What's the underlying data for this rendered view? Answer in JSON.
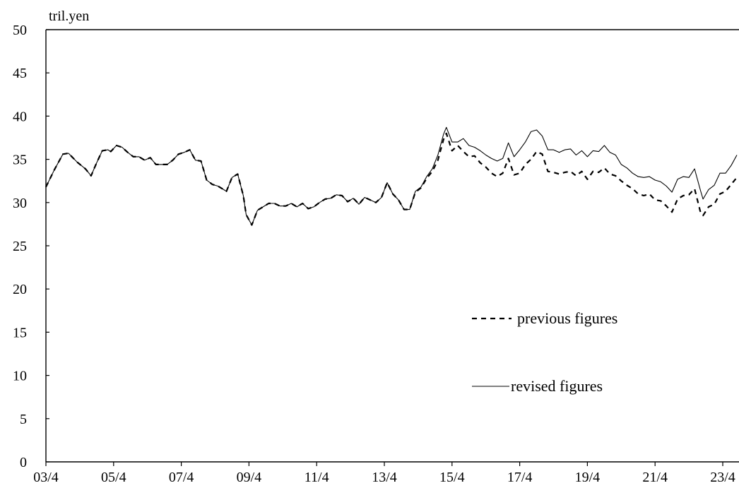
{
  "chart_data": {
    "type": "line",
    "title": "",
    "ylabel": "tril.yen",
    "xlabel": "",
    "ylim": [
      0,
      50
    ],
    "yticks": [
      "0",
      "5",
      "10",
      "15",
      "20",
      "25",
      "30",
      "35",
      "40",
      "45",
      "50"
    ],
    "x_tick_labels": [
      "03/4",
      "05/4",
      "07/4",
      "09/4",
      "11/4",
      "13/4",
      "15/4",
      "17/4",
      "19/4",
      "21/4",
      "23/4"
    ],
    "x_domain": [
      "2003-04",
      "2023-10"
    ],
    "grid": false,
    "legend_position": "right-middle",
    "series": [
      {
        "name": "previous figures",
        "style": "dashed",
        "color": "#000000",
        "points": [
          [
            "2003-04",
            31.8
          ],
          [
            "2003-07",
            33.8
          ],
          [
            "2003-10",
            35.6
          ],
          [
            "2003-12",
            35.7
          ],
          [
            "2004-03",
            34.7
          ],
          [
            "2004-06",
            33.9
          ],
          [
            "2004-08",
            33.1
          ],
          [
            "2004-10",
            34.6
          ],
          [
            "2004-12",
            36.0
          ],
          [
            "2005-02",
            36.1
          ],
          [
            "2005-03",
            35.9
          ],
          [
            "2005-05",
            36.6
          ],
          [
            "2005-07",
            36.4
          ],
          [
            "2005-09",
            35.8
          ],
          [
            "2005-11",
            35.3
          ],
          [
            "2006-01",
            35.3
          ],
          [
            "2006-03",
            34.9
          ],
          [
            "2006-05",
            35.2
          ],
          [
            "2006-07",
            34.4
          ],
          [
            "2006-09",
            34.4
          ],
          [
            "2006-11",
            34.4
          ],
          [
            "2007-01",
            34.9
          ],
          [
            "2007-03",
            35.6
          ],
          [
            "2007-05",
            35.8
          ],
          [
            "2007-07",
            36.1
          ],
          [
            "2007-09",
            34.9
          ],
          [
            "2007-11",
            34.8
          ],
          [
            "2008-01",
            32.6
          ],
          [
            "2008-03",
            32.1
          ],
          [
            "2008-05",
            31.9
          ],
          [
            "2008-08",
            31.3
          ],
          [
            "2008-10",
            32.9
          ],
          [
            "2008-12",
            33.3
          ],
          [
            "2009-02",
            30.8
          ],
          [
            "2009-03",
            28.6
          ],
          [
            "2009-05",
            27.4
          ],
          [
            "2009-07",
            29.1
          ],
          [
            "2009-09",
            29.5
          ],
          [
            "2009-11",
            29.9
          ],
          [
            "2010-01",
            29.9
          ],
          [
            "2010-03",
            29.6
          ],
          [
            "2010-05",
            29.6
          ],
          [
            "2010-07",
            29.9
          ],
          [
            "2010-09",
            29.5
          ],
          [
            "2010-11",
            29.9
          ],
          [
            "2011-01",
            29.3
          ],
          [
            "2011-03",
            29.5
          ],
          [
            "2011-05",
            30.0
          ],
          [
            "2011-07",
            30.4
          ],
          [
            "2011-09",
            30.5
          ],
          [
            "2011-11",
            30.9
          ],
          [
            "2012-01",
            30.8
          ],
          [
            "2012-03",
            30.1
          ],
          [
            "2012-05",
            30.5
          ],
          [
            "2012-07",
            29.8
          ],
          [
            "2012-09",
            30.6
          ],
          [
            "2012-11",
            30.3
          ],
          [
            "2013-01",
            30.0
          ],
          [
            "2013-03",
            30.6
          ],
          [
            "2013-05",
            32.3
          ],
          [
            "2013-07",
            31.0
          ],
          [
            "2013-09",
            30.3
          ],
          [
            "2013-11",
            29.2
          ],
          [
            "2014-01",
            29.2
          ],
          [
            "2014-03",
            31.2
          ],
          [
            "2014-05",
            31.7
          ],
          [
            "2014-07",
            32.8
          ],
          [
            "2014-09",
            33.6
          ],
          [
            "2014-11",
            34.9
          ],
          [
            "2015-01",
            37.3
          ],
          [
            "2015-02",
            38.0
          ],
          [
            "2015-04",
            36.0
          ],
          [
            "2015-06",
            36.6
          ],
          [
            "2015-08",
            35.9
          ],
          [
            "2015-10",
            35.3
          ],
          [
            "2015-12",
            35.4
          ],
          [
            "2016-02",
            34.6
          ],
          [
            "2016-04",
            34.1
          ],
          [
            "2016-06",
            33.4
          ],
          [
            "2016-08",
            33.0
          ],
          [
            "2016-10",
            33.4
          ],
          [
            "2016-12",
            35.1
          ],
          [
            "2017-02",
            33.2
          ],
          [
            "2017-04",
            33.4
          ],
          [
            "2017-06",
            34.4
          ],
          [
            "2017-08",
            35.0
          ],
          [
            "2017-10",
            35.9
          ],
          [
            "2017-12",
            35.6
          ],
          [
            "2018-02",
            33.6
          ],
          [
            "2018-04",
            33.5
          ],
          [
            "2018-06",
            33.3
          ],
          [
            "2018-08",
            33.5
          ],
          [
            "2018-10",
            33.6
          ],
          [
            "2018-12",
            33.1
          ],
          [
            "2019-02",
            33.6
          ],
          [
            "2019-04",
            32.7
          ],
          [
            "2019-06",
            33.6
          ],
          [
            "2019-08",
            33.5
          ],
          [
            "2019-10",
            34.0
          ],
          [
            "2019-12",
            33.3
          ],
          [
            "2020-02",
            33.1
          ],
          [
            "2020-04",
            32.5
          ],
          [
            "2020-06",
            32.0
          ],
          [
            "2020-08",
            31.6
          ],
          [
            "2020-10",
            31.0
          ],
          [
            "2020-12",
            30.8
          ],
          [
            "2021-02",
            31.0
          ],
          [
            "2021-04",
            30.3
          ],
          [
            "2021-06",
            30.2
          ],
          [
            "2021-08",
            29.6
          ],
          [
            "2021-10",
            28.9
          ],
          [
            "2021-12",
            30.4
          ],
          [
            "2022-02",
            30.8
          ],
          [
            "2022-04",
            30.9
          ],
          [
            "2022-06",
            31.6
          ],
          [
            "2022-08",
            29.0
          ],
          [
            "2022-09",
            28.5
          ],
          [
            "2022-11",
            29.5
          ],
          [
            "2023-01",
            29.8
          ],
          [
            "2023-03",
            31.0
          ],
          [
            "2023-05",
            31.3
          ],
          [
            "2023-07",
            32.1
          ],
          [
            "2023-09",
            32.9
          ]
        ]
      },
      {
        "name": "revised figures",
        "style": "solid",
        "color": "#000000",
        "points": [
          [
            "2003-04",
            31.8
          ],
          [
            "2003-07",
            33.8
          ],
          [
            "2003-10",
            35.6
          ],
          [
            "2003-12",
            35.7
          ],
          [
            "2004-03",
            34.7
          ],
          [
            "2004-06",
            33.9
          ],
          [
            "2004-08",
            33.1
          ],
          [
            "2004-10",
            34.6
          ],
          [
            "2004-12",
            36.0
          ],
          [
            "2005-02",
            36.1
          ],
          [
            "2005-03",
            35.9
          ],
          [
            "2005-05",
            36.6
          ],
          [
            "2005-07",
            36.4
          ],
          [
            "2005-09",
            35.8
          ],
          [
            "2005-11",
            35.3
          ],
          [
            "2006-01",
            35.3
          ],
          [
            "2006-03",
            34.9
          ],
          [
            "2006-05",
            35.2
          ],
          [
            "2006-07",
            34.4
          ],
          [
            "2006-09",
            34.4
          ],
          [
            "2006-11",
            34.4
          ],
          [
            "2007-01",
            34.9
          ],
          [
            "2007-03",
            35.6
          ],
          [
            "2007-05",
            35.8
          ],
          [
            "2007-07",
            36.1
          ],
          [
            "2007-09",
            34.9
          ],
          [
            "2007-11",
            34.8
          ],
          [
            "2008-01",
            32.6
          ],
          [
            "2008-03",
            32.1
          ],
          [
            "2008-05",
            31.9
          ],
          [
            "2008-08",
            31.3
          ],
          [
            "2008-10",
            32.9
          ],
          [
            "2008-12",
            33.3
          ],
          [
            "2009-02",
            30.8
          ],
          [
            "2009-03",
            28.6
          ],
          [
            "2009-05",
            27.4
          ],
          [
            "2009-07",
            29.1
          ],
          [
            "2009-09",
            29.5
          ],
          [
            "2009-11",
            29.9
          ],
          [
            "2010-01",
            29.9
          ],
          [
            "2010-03",
            29.6
          ],
          [
            "2010-05",
            29.6
          ],
          [
            "2010-07",
            29.9
          ],
          [
            "2010-09",
            29.5
          ],
          [
            "2010-11",
            29.9
          ],
          [
            "2011-01",
            29.3
          ],
          [
            "2011-03",
            29.5
          ],
          [
            "2011-05",
            30.0
          ],
          [
            "2011-07",
            30.4
          ],
          [
            "2011-09",
            30.5
          ],
          [
            "2011-11",
            30.9
          ],
          [
            "2012-01",
            30.8
          ],
          [
            "2012-03",
            30.1
          ],
          [
            "2012-05",
            30.5
          ],
          [
            "2012-07",
            29.8
          ],
          [
            "2012-09",
            30.6
          ],
          [
            "2012-11",
            30.3
          ],
          [
            "2013-01",
            30.0
          ],
          [
            "2013-03",
            30.6
          ],
          [
            "2013-05",
            32.3
          ],
          [
            "2013-07",
            31.0
          ],
          [
            "2013-09",
            30.3
          ],
          [
            "2013-11",
            29.2
          ],
          [
            "2014-01",
            29.2
          ],
          [
            "2014-03",
            31.3
          ],
          [
            "2014-05",
            31.8
          ],
          [
            "2014-07",
            33.0
          ],
          [
            "2014-09",
            33.9
          ],
          [
            "2014-11",
            35.5
          ],
          [
            "2015-01",
            37.9
          ],
          [
            "2015-02",
            38.7
          ],
          [
            "2015-04",
            37.0
          ],
          [
            "2015-06",
            37.0
          ],
          [
            "2015-08",
            37.4
          ],
          [
            "2015-10",
            36.6
          ],
          [
            "2015-12",
            36.4
          ],
          [
            "2016-02",
            36.0
          ],
          [
            "2016-04",
            35.5
          ],
          [
            "2016-06",
            35.1
          ],
          [
            "2016-08",
            34.8
          ],
          [
            "2016-10",
            35.1
          ],
          [
            "2016-12",
            36.9
          ],
          [
            "2017-02",
            35.3
          ],
          [
            "2017-04",
            36.1
          ],
          [
            "2017-06",
            37.0
          ],
          [
            "2017-08",
            38.2
          ],
          [
            "2017-10",
            38.4
          ],
          [
            "2017-12",
            37.7
          ],
          [
            "2018-02",
            36.1
          ],
          [
            "2018-04",
            36.1
          ],
          [
            "2018-06",
            35.8
          ],
          [
            "2018-08",
            36.1
          ],
          [
            "2018-10",
            36.2
          ],
          [
            "2018-12",
            35.5
          ],
          [
            "2019-02",
            36.0
          ],
          [
            "2019-04",
            35.3
          ],
          [
            "2019-06",
            36.0
          ],
          [
            "2019-08",
            35.9
          ],
          [
            "2019-10",
            36.6
          ],
          [
            "2019-12",
            35.8
          ],
          [
            "2020-02",
            35.5
          ],
          [
            "2020-04",
            34.4
          ],
          [
            "2020-06",
            34.0
          ],
          [
            "2020-08",
            33.4
          ],
          [
            "2020-10",
            33.0
          ],
          [
            "2020-12",
            32.9
          ],
          [
            "2021-02",
            33.0
          ],
          [
            "2021-04",
            32.6
          ],
          [
            "2021-06",
            32.4
          ],
          [
            "2021-08",
            31.9
          ],
          [
            "2021-10",
            31.2
          ],
          [
            "2021-12",
            32.7
          ],
          [
            "2022-02",
            33.0
          ],
          [
            "2022-04",
            32.9
          ],
          [
            "2022-06",
            33.9
          ],
          [
            "2022-08",
            31.5
          ],
          [
            "2022-09",
            30.4
          ],
          [
            "2022-11",
            31.5
          ],
          [
            "2023-01",
            32.0
          ],
          [
            "2023-03",
            33.4
          ],
          [
            "2023-05",
            33.4
          ],
          [
            "2023-07",
            34.3
          ],
          [
            "2023-09",
            35.5
          ]
        ]
      }
    ]
  }
}
